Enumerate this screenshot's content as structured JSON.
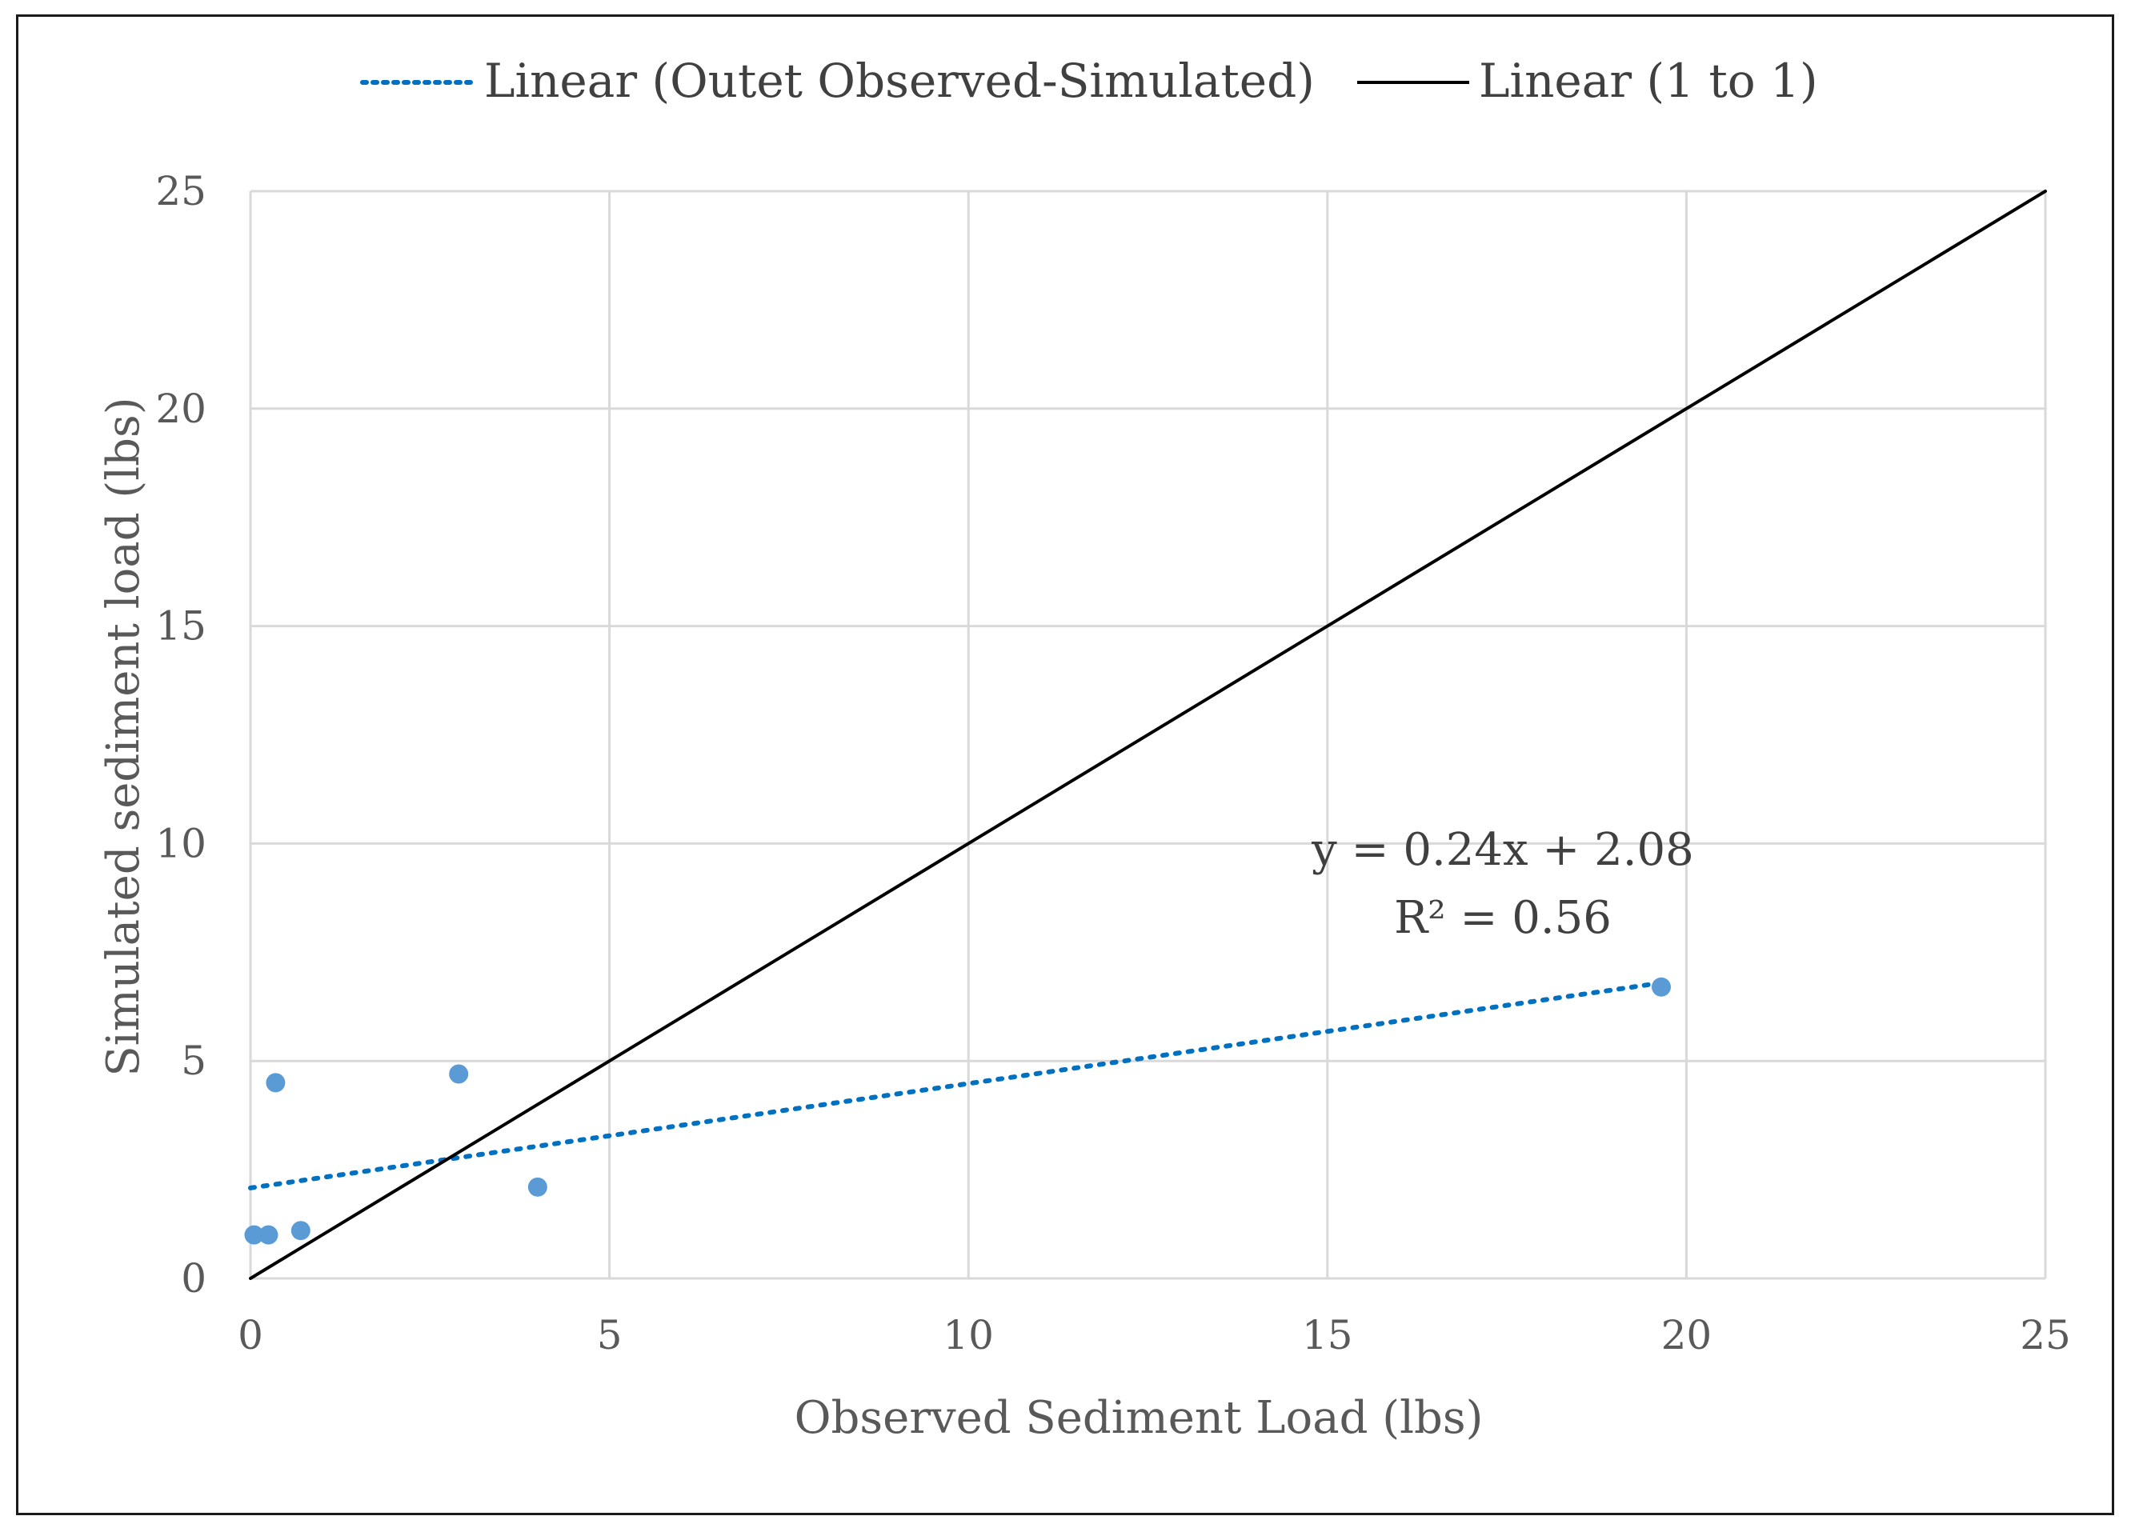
{
  "chart_data": {
    "type": "scatter",
    "title": "",
    "xlabel": "Observed Sediment Load (lbs)",
    "ylabel": "Simulated sediment load (lbs)",
    "xlim": [
      0,
      25
    ],
    "ylim": [
      0,
      25
    ],
    "xticks": [
      0,
      5,
      10,
      15,
      20,
      25
    ],
    "yticks": [
      0,
      5,
      10,
      15,
      20,
      25
    ],
    "grid": true,
    "legend_position": "top",
    "series": [
      {
        "name": "Outet Observed-Simulated",
        "type": "scatter",
        "color": "#5b9bd5",
        "points": [
          {
            "x": 0.05,
            "y": 1.0
          },
          {
            "x": 0.25,
            "y": 1.0
          },
          {
            "x": 0.35,
            "y": 4.5
          },
          {
            "x": 0.7,
            "y": 1.1
          },
          {
            "x": 2.9,
            "y": 4.7
          },
          {
            "x": 4.0,
            "y": 2.1
          },
          {
            "x": 19.65,
            "y": 6.7
          }
        ]
      }
    ],
    "trendlines": [
      {
        "name": "Linear (Outet Observed-Simulated)",
        "style": "dotted",
        "color": "#0070c0",
        "slope": 0.24,
        "intercept": 2.08,
        "x_range": [
          0,
          19.65
        ],
        "equation": "y = 0.24x + 2.08",
        "r_squared": "R² = 0.56"
      },
      {
        "name": "Linear (1 to 1)",
        "style": "solid",
        "color": "#000000",
        "slope": 1,
        "intercept": 0,
        "x_range": [
          0,
          25
        ]
      }
    ]
  }
}
